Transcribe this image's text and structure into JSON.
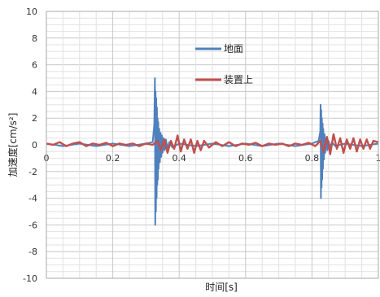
{
  "chart_data": {
    "type": "line",
    "title": "",
    "xlabel": "时间[s]",
    "ylabel": "加速度[cm/s²]",
    "xlim": [
      0,
      1
    ],
    "ylim": [
      -10,
      10
    ],
    "x_ticks": [
      "0",
      "0.2",
      "0.4",
      "0.6",
      "0.8",
      "1"
    ],
    "y_ticks": [
      "10",
      "8",
      "6",
      "4",
      "2",
      "0",
      "-2",
      "-4",
      "-6",
      "-8",
      "-10"
    ],
    "grid": true,
    "legend": "inside-top-center",
    "series": [
      {
        "name": "地面",
        "color": "#4f81bd",
        "x": [
          0.0,
          0.05,
          0.1,
          0.15,
          0.2,
          0.25,
          0.3,
          0.32,
          0.325,
          0.327,
          0.328,
          0.329,
          0.33,
          0.331,
          0.332,
          0.333,
          0.334,
          0.335,
          0.336,
          0.337,
          0.338,
          0.34,
          0.342,
          0.344,
          0.346,
          0.348,
          0.35,
          0.353,
          0.356,
          0.36,
          0.365,
          0.37,
          0.38,
          0.4,
          0.45,
          0.5,
          0.55,
          0.6,
          0.65,
          0.7,
          0.75,
          0.8,
          0.82,
          0.825,
          0.826,
          0.827,
          0.828,
          0.829,
          0.83,
          0.831,
          0.832,
          0.833,
          0.834,
          0.836,
          0.838,
          0.84,
          0.843,
          0.846,
          0.85,
          0.855,
          0.86,
          0.87,
          0.9,
          0.95,
          1.0
        ],
        "values": [
          0.1,
          -0.1,
          0.1,
          -0.1,
          0.1,
          -0.1,
          0.1,
          0.2,
          1.5,
          5.0,
          -6.0,
          4.0,
          -5.0,
          3.5,
          -4.0,
          2.8,
          -3.0,
          2.0,
          -2.6,
          1.7,
          -1.8,
          1.2,
          -1.3,
          0.9,
          -0.9,
          0.7,
          -0.6,
          0.5,
          -0.4,
          0.4,
          -0.3,
          0.2,
          -0.2,
          0.1,
          -0.1,
          0.1,
          -0.1,
          0.1,
          -0.1,
          0.1,
          -0.1,
          0.1,
          0.3,
          1.0,
          3.0,
          -4.0,
          2.6,
          -3.2,
          2.0,
          -2.6,
          1.6,
          -1.8,
          1.2,
          -1.1,
          0.8,
          -0.6,
          0.5,
          -0.4,
          0.3,
          -0.2,
          0.2,
          -0.1,
          0.1,
          -0.1,
          0.1
        ]
      },
      {
        "name": "装置上",
        "color": "#c0504d",
        "x": [
          0.0,
          0.02,
          0.04,
          0.06,
          0.08,
          0.1,
          0.12,
          0.14,
          0.16,
          0.18,
          0.2,
          0.22,
          0.24,
          0.26,
          0.28,
          0.3,
          0.32,
          0.335,
          0.345,
          0.355,
          0.365,
          0.375,
          0.385,
          0.395,
          0.405,
          0.415,
          0.425,
          0.435,
          0.445,
          0.455,
          0.465,
          0.475,
          0.49,
          0.51,
          0.53,
          0.55,
          0.57,
          0.59,
          0.61,
          0.63,
          0.65,
          0.67,
          0.69,
          0.71,
          0.73,
          0.75,
          0.77,
          0.79,
          0.81,
          0.825,
          0.835,
          0.845,
          0.855,
          0.865,
          0.875,
          0.885,
          0.895,
          0.905,
          0.915,
          0.925,
          0.935,
          0.945,
          0.955,
          0.965,
          0.975,
          0.985,
          1.0
        ],
        "values": [
          0.1,
          0.0,
          0.2,
          -0.1,
          0.1,
          0.2,
          -0.1,
          0.1,
          0.0,
          0.15,
          -0.1,
          0.1,
          0.0,
          0.1,
          -0.1,
          0.1,
          0.0,
          0.3,
          -0.4,
          0.4,
          -0.6,
          0.3,
          -0.3,
          0.7,
          -0.5,
          0.4,
          -0.3,
          0.4,
          -0.6,
          0.3,
          -0.4,
          0.3,
          -0.2,
          0.2,
          -0.1,
          0.2,
          -0.1,
          0.1,
          0.0,
          0.15,
          -0.1,
          0.1,
          0.0,
          0.1,
          -0.1,
          0.1,
          0.0,
          0.15,
          -0.1,
          0.3,
          -0.5,
          0.6,
          -0.7,
          0.8,
          -0.3,
          0.5,
          -0.6,
          0.4,
          -0.3,
          0.5,
          -0.5,
          0.4,
          -0.3,
          0.4,
          -0.3,
          0.3,
          0.2
        ]
      }
    ]
  }
}
